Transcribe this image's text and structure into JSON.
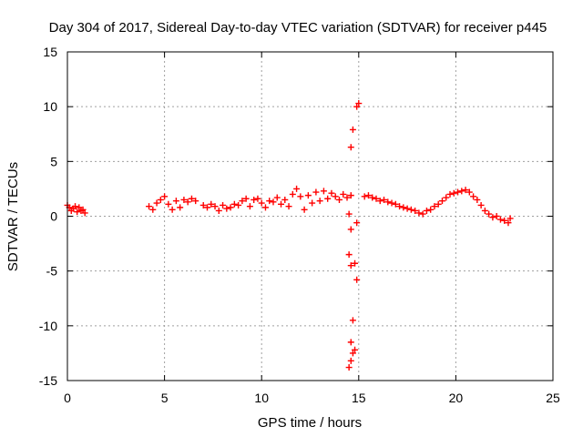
{
  "chart_data": {
    "type": "scatter",
    "title": "Day 304 of 2017, Sidereal Day-to-day VTEC variation (SDTVAR) for receiver p445",
    "xlabel": "GPS time / hours",
    "ylabel": "SDTVAR / TECUs",
    "xlim": [
      0,
      25
    ],
    "ylim": [
      -15,
      15
    ],
    "xticks": [
      0,
      5,
      10,
      15,
      20,
      25
    ],
    "yticks": [
      -15,
      -10,
      -5,
      0,
      5,
      10,
      15
    ],
    "grid": true,
    "marker": "+",
    "marker_color": "#ff0000",
    "series": [
      {
        "name": "SDTVAR",
        "points": [
          [
            0.0,
            1.0
          ],
          [
            0.1,
            0.8
          ],
          [
            0.2,
            0.5
          ],
          [
            0.3,
            0.7
          ],
          [
            0.4,
            0.9
          ],
          [
            0.5,
            0.4
          ],
          [
            0.6,
            0.8
          ],
          [
            0.7,
            0.5
          ],
          [
            0.8,
            0.6
          ],
          [
            0.9,
            0.3
          ],
          [
            4.2,
            0.9
          ],
          [
            4.4,
            0.6
          ],
          [
            4.6,
            1.2
          ],
          [
            4.8,
            1.5
          ],
          [
            5.0,
            1.8
          ],
          [
            5.2,
            1.1
          ],
          [
            5.4,
            0.6
          ],
          [
            5.6,
            1.4
          ],
          [
            5.8,
            0.8
          ],
          [
            6.0,
            1.5
          ],
          [
            6.2,
            1.3
          ],
          [
            6.4,
            1.6
          ],
          [
            6.6,
            1.4
          ],
          [
            7.0,
            1.0
          ],
          [
            7.2,
            0.8
          ],
          [
            7.4,
            1.1
          ],
          [
            7.6,
            0.9
          ],
          [
            7.8,
            0.5
          ],
          [
            8.0,
            1.0
          ],
          [
            8.2,
            0.7
          ],
          [
            8.4,
            0.8
          ],
          [
            8.6,
            1.1
          ],
          [
            8.8,
            1.0
          ],
          [
            9.0,
            1.4
          ],
          [
            9.2,
            1.6
          ],
          [
            9.4,
            0.9
          ],
          [
            9.6,
            1.5
          ],
          [
            9.8,
            1.6
          ],
          [
            10.0,
            1.2
          ],
          [
            10.2,
            0.8
          ],
          [
            10.4,
            1.4
          ],
          [
            10.6,
            1.3
          ],
          [
            10.8,
            1.7
          ],
          [
            11.0,
            1.1
          ],
          [
            11.2,
            1.5
          ],
          [
            11.4,
            0.9
          ],
          [
            11.6,
            2.0
          ],
          [
            11.8,
            2.5
          ],
          [
            12.0,
            1.8
          ],
          [
            12.2,
            0.6
          ],
          [
            12.4,
            1.9
          ],
          [
            12.6,
            1.2
          ],
          [
            12.8,
            2.2
          ],
          [
            13.0,
            1.4
          ],
          [
            13.2,
            2.3
          ],
          [
            13.4,
            1.6
          ],
          [
            13.6,
            2.1
          ],
          [
            13.8,
            1.8
          ],
          [
            14.0,
            1.5
          ],
          [
            14.2,
            2.0
          ],
          [
            14.4,
            1.7
          ],
          [
            14.6,
            1.9
          ],
          [
            14.5,
            0.2
          ],
          [
            14.6,
            -1.2
          ],
          [
            14.5,
            -3.5
          ],
          [
            14.6,
            -4.5
          ],
          [
            14.8,
            -4.3
          ],
          [
            14.9,
            -5.8
          ],
          [
            14.7,
            -9.5
          ],
          [
            14.6,
            -11.5
          ],
          [
            14.7,
            -12.5
          ],
          [
            14.5,
            -13.8
          ],
          [
            14.8,
            -12.2
          ],
          [
            14.6,
            -13.2
          ],
          [
            14.6,
            6.3
          ],
          [
            14.7,
            7.9
          ],
          [
            14.9,
            10.0
          ],
          [
            15.0,
            10.3
          ],
          [
            14.9,
            -0.6
          ],
          [
            15.3,
            1.8
          ],
          [
            15.5,
            1.9
          ],
          [
            15.7,
            1.7
          ],
          [
            15.9,
            1.6
          ],
          [
            16.1,
            1.4
          ],
          [
            16.3,
            1.5
          ],
          [
            16.5,
            1.3
          ],
          [
            16.7,
            1.2
          ],
          [
            16.9,
            1.1
          ],
          [
            17.1,
            0.9
          ],
          [
            17.3,
            0.8
          ],
          [
            17.5,
            0.7
          ],
          [
            17.7,
            0.6
          ],
          [
            17.9,
            0.5
          ],
          [
            18.1,
            0.3
          ],
          [
            18.3,
            0.2
          ],
          [
            18.5,
            0.5
          ],
          [
            18.7,
            0.6
          ],
          [
            18.9,
            0.9
          ],
          [
            19.1,
            1.1
          ],
          [
            19.3,
            1.4
          ],
          [
            19.5,
            1.7
          ],
          [
            19.7,
            2.0
          ],
          [
            19.9,
            2.1
          ],
          [
            20.1,
            2.2
          ],
          [
            20.3,
            2.3
          ],
          [
            20.5,
            2.4
          ],
          [
            20.7,
            2.2
          ],
          [
            20.9,
            1.8
          ],
          [
            21.1,
            1.5
          ],
          [
            21.3,
            1.0
          ],
          [
            21.5,
            0.5
          ],
          [
            21.7,
            0.2
          ],
          [
            21.9,
            -0.1
          ],
          [
            22.1,
            0.0
          ],
          [
            22.3,
            -0.3
          ],
          [
            22.5,
            -0.4
          ],
          [
            22.7,
            -0.6
          ],
          [
            22.8,
            -0.2
          ]
        ]
      }
    ]
  }
}
